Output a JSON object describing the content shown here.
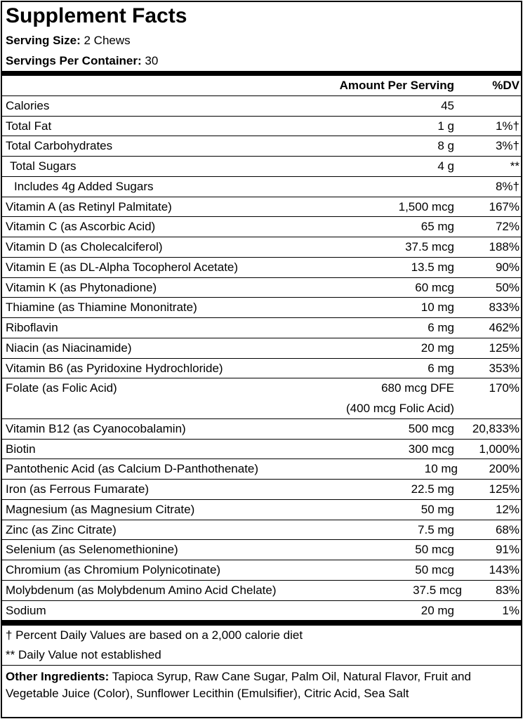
{
  "title": "Supplement Facts",
  "serving_size": {
    "label": "Serving Size:",
    "value": "2 Chews"
  },
  "servings_per_container": {
    "label": "Servings Per Container:",
    "value": "30"
  },
  "header": {
    "amount": "Amount Per Serving",
    "dv": "%DV"
  },
  "rows": [
    {
      "name": "Calories",
      "amount": "45"
    },
    {
      "name": "Total Fat",
      "amount": "1 g",
      "dv": "1%†"
    },
    {
      "name": "Total Carbohydrates",
      "amount": "8 g",
      "dv": "3%†"
    },
    {
      "name": "Total Sugars",
      "amount": "4 g",
      "dv": "**",
      "indent": 1
    },
    {
      "name": "Includes 4g Added Sugars",
      "dv": "8%†",
      "indent": 2
    },
    {
      "name": "Vitamin A (as Retinyl Palmitate)",
      "amount": "1,500 mcg",
      "dv": "167%"
    },
    {
      "name": "Vitamin C (as Ascorbic Acid)",
      "amount": "65 mg",
      "dv": "72%"
    },
    {
      "name": "Vitamin D (as Cholecalciferol)",
      "amount": "37.5 mcg",
      "dv": "188%"
    },
    {
      "name": "Vitamin E (as DL-Alpha Tocopherol Acetate)",
      "amount": "13.5 mg",
      "dv": "90%"
    },
    {
      "name": "Vitamin K (as Phytonadione)",
      "amount": "60 mcg",
      "dv": "50%"
    },
    {
      "name": "Thiamine (as Thiamine Mononitrate)",
      "amount": "10 mg",
      "dv": "833%"
    },
    {
      "name": "Riboflavin",
      "amount": "6 mg",
      "dv": "462%"
    },
    {
      "name": "Niacin (as Niacinamide)",
      "amount": "20 mg",
      "dv": "125%"
    },
    {
      "name": "Vitamin B6 (as Pyridoxine Hydrochloride)",
      "amount": "6 mg",
      "dv": "353%"
    },
    {
      "name": "Folate (as Folic Acid)",
      "amount": "680 mcg DFE",
      "amount_note": "(400 mcg Folic Acid)",
      "dv": "170%"
    },
    {
      "name": "Vitamin B12 (as Cyanocobalamin)",
      "amount": "500 mcg",
      "dv": "20,833%"
    },
    {
      "name": "Biotin",
      "amount": "300 mcg",
      "dv": "1,000%"
    },
    {
      "name": "Pantothenic Acid (as Calcium D-Panthothenate)",
      "amount": "10 mg",
      "dv": "200%"
    },
    {
      "name": "Iron (as Ferrous Fumarate)",
      "amount": "22.5 mg",
      "dv": "125%"
    },
    {
      "name": "Magnesium (as Magnesium Citrate)",
      "amount": "50 mg",
      "dv": "12%"
    },
    {
      "name": "Zinc (as Zinc Citrate)",
      "amount": "7.5 mg",
      "dv": "68%"
    },
    {
      "name": "Selenium (as Selenomethionine)",
      "amount": "50 mcg",
      "dv": "91%"
    },
    {
      "name": "Chromium (as Chromium Polynicotinate)",
      "amount": "50 mcg",
      "dv": "143%"
    },
    {
      "name": "Molybdenum (as Molybdenum Amino Acid Chelate)",
      "amount": "37.5 mcg",
      "dv": "83%"
    },
    {
      "name": "Sodium",
      "amount": "20 mg",
      "dv": "1%"
    }
  ],
  "footnotes": [
    "† Percent Daily Values are based on a 2,000 calorie diet",
    "** Daily Value not established"
  ],
  "other_ingredients": {
    "label": "Other Ingredients:",
    "text": "Tapioca Syrup, Raw Cane Sugar, Palm Oil, Natural Flavor, Fruit and Vegetable Juice (Color), Sunflower Lecithin (Emulsifier), Citric Acid, Sea Salt"
  }
}
